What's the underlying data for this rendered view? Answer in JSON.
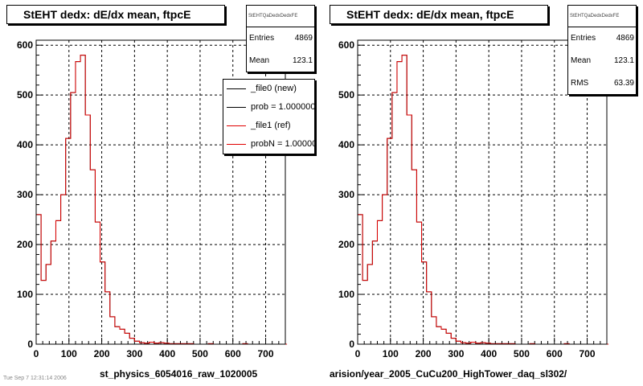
{
  "colors": {
    "new": "#000000",
    "ref": "#e00000",
    "grid": "#000000"
  },
  "pads": [
    {
      "title": "StEHT dedx: dE/dx mean, ftpcE",
      "stats": {
        "name": "StEHTQaDedxDedxFE",
        "rows": [
          {
            "label": "Entries",
            "value": "4869"
          },
          {
            "label": "Mean",
            "value": "123.1"
          }
        ]
      },
      "legend": [
        {
          "text": "_file0 (new)",
          "color": "#000000"
        },
        {
          "text": "prob = 1.000000",
          "color": "#000000"
        },
        {
          "text": "_file1 (ref)",
          "color": "#e00000"
        },
        {
          "text": "probN = 1.000000",
          "color": "#e00000"
        }
      ],
      "footer": "st_physics_6054016_raw_1020005"
    },
    {
      "title": "StEHT dedx: dE/dx mean, ftpcE",
      "stats": {
        "name": "StEHTQaDedxDedxFE",
        "rows": [
          {
            "label": "Entries",
            "value": "4869"
          },
          {
            "label": "Mean",
            "value": "123.1"
          },
          {
            "label": "RMS",
            "value": "63.39"
          }
        ]
      },
      "legend": [],
      "footer": "arision/year_2005_CuCu200_HighTower_daq_sl302/"
    }
  ],
  "corner_text": "Tue Sep 7 12:31:14 2006",
  "chart_data": {
    "type": "histogram",
    "xlim": [
      0,
      760
    ],
    "ylim": [
      0,
      610
    ],
    "xticks": [
      0,
      100,
      200,
      300,
      400,
      500,
      600,
      700
    ],
    "yticks": [
      0,
      100,
      200,
      300,
      400,
      500,
      600
    ],
    "grid": true,
    "bin_width": 15,
    "x_start": 0,
    "series": [
      {
        "name": "_file0 (new)",
        "values": [
          260,
          128,
          160,
          207,
          248,
          300,
          413,
          505,
          567,
          580,
          460,
          350,
          245,
          165,
          105,
          55,
          35,
          30,
          22,
          12,
          6,
          3,
          2,
          4,
          2,
          3,
          2,
          1,
          1,
          1,
          1,
          1,
          0,
          0,
          0,
          1,
          0,
          0,
          0,
          0,
          0,
          0,
          1,
          0,
          0,
          0,
          0,
          0,
          0,
          0,
          0
        ]
      },
      {
        "name": "_file1 (ref)",
        "values": [
          260,
          128,
          160,
          207,
          248,
          300,
          413,
          505,
          567,
          580,
          460,
          350,
          245,
          165,
          105,
          55,
          35,
          30,
          22,
          12,
          6,
          3,
          2,
          4,
          2,
          3,
          2,
          1,
          1,
          1,
          1,
          1,
          0,
          0,
          0,
          1,
          0,
          0,
          0,
          0,
          0,
          0,
          1,
          0,
          0,
          0,
          0,
          0,
          0,
          0,
          0
        ]
      }
    ]
  }
}
